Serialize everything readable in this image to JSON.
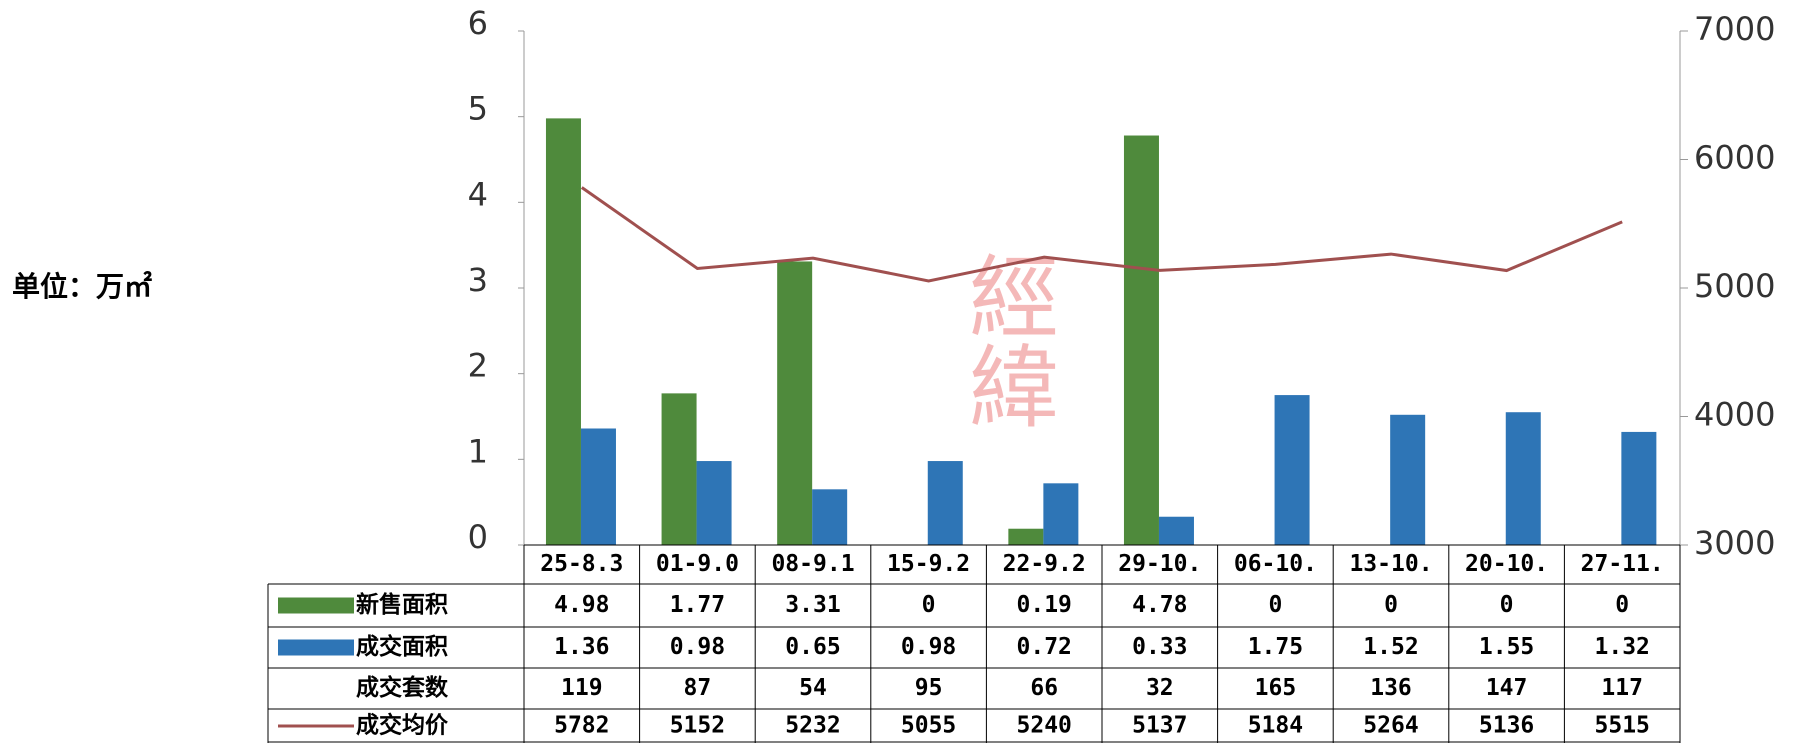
{
  "chart_data": {
    "type": "bar_line_table",
    "unit_label": "单位：万㎡",
    "watermark": "經緯",
    "categories": [
      "25-8.3",
      "01-9.0",
      "08-9.1",
      "15-9.2",
      "22-9.2",
      "29-10.",
      "06-10.",
      "13-10.",
      "20-10.",
      "27-11."
    ],
    "series": [
      {
        "name": "新售面积",
        "type": "bar",
        "color": "#4f8a3c",
        "values": [
          4.98,
          1.77,
          3.31,
          0,
          0.19,
          4.78,
          0,
          0,
          0,
          0
        ]
      },
      {
        "name": "成交面积",
        "type": "bar",
        "color": "#2e75b6",
        "values": [
          1.36,
          0.98,
          0.65,
          0.98,
          0.72,
          0.33,
          1.75,
          1.52,
          1.55,
          1.32
        ]
      },
      {
        "name": "成交套数",
        "type": "none",
        "values": [
          119,
          87,
          54,
          95,
          66,
          32,
          165,
          136,
          147,
          117
        ]
      },
      {
        "name": "成交均价",
        "type": "line",
        "axis": "y2",
        "color": "#a0504f",
        "values": [
          5782,
          5152,
          5232,
          5055,
          5240,
          5137,
          5184,
          5264,
          5136,
          5515
        ]
      }
    ],
    "ylim": [
      0,
      6
    ],
    "yticks": [
      0,
      1,
      2,
      3,
      4,
      5,
      6
    ],
    "y2lim": [
      3000,
      7000
    ],
    "y2ticks": [
      3000,
      4000,
      5000,
      6000,
      7000
    ]
  }
}
